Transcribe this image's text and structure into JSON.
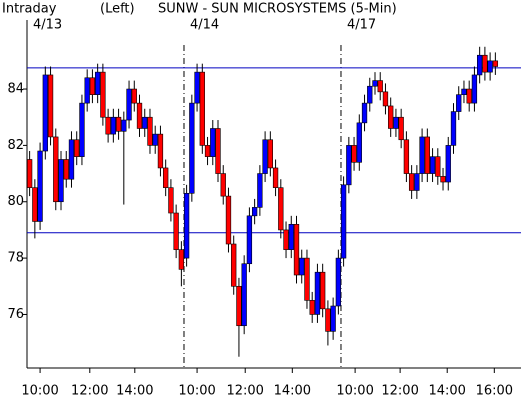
{
  "chart_data": {
    "type": "candlestick",
    "title": "SUNW - SUN MICROSYSTEMS (5-Min)",
    "subtitle": "Intraday",
    "axis_note": "(Left)",
    "up_color": "#0000ff",
    "down_color": "#ff0000",
    "line_color": "#0000c0",
    "open": [
      81.5,
      80.5,
      79.3,
      81.8,
      84.5,
      82.3,
      80.0,
      81.5,
      80.8,
      82.2,
      81.6,
      83.5,
      84.4,
      83.8,
      84.6,
      83.0,
      82.4,
      83.0,
      82.5,
      82.9,
      84.0,
      83.5,
      82.6,
      83.0,
      82.0,
      82.4,
      81.2,
      80.5,
      79.6,
      78.3,
      78.0,
      80.3,
      83.5,
      84.6,
      82.0,
      81.6,
      82.6,
      81.0,
      80.2,
      78.5,
      77.0,
      75.6,
      77.8,
      79.5,
      79.8,
      81.0,
      82.2,
      81.2,
      80.5,
      79.0,
      78.3,
      79.2,
      77.4,
      78.0,
      76.5,
      76.0,
      77.5,
      76.2,
      75.4,
      76.3,
      78.0,
      80.6,
      82.0,
      81.4,
      82.8,
      83.5,
      84.1,
      84.3,
      83.9,
      83.4,
      82.6,
      83.0,
      82.2,
      81.0,
      80.4,
      81.0,
      82.3,
      81.0,
      81.6,
      80.9,
      80.7,
      82.0,
      83.2,
      83.8,
      84.0,
      83.5,
      84.5,
      85.2,
      84.6,
      85.0
    ],
    "high": [
      81.8,
      80.8,
      82.1,
      84.8,
      84.8,
      82.6,
      81.8,
      81.8,
      82.5,
      82.5,
      83.8,
      84.7,
      84.7,
      84.9,
      84.9,
      83.3,
      83.3,
      83.3,
      83.2,
      84.3,
      84.3,
      83.8,
      83.3,
      83.3,
      82.7,
      82.7,
      81.5,
      80.8,
      79.9,
      78.6,
      80.6,
      83.8,
      84.9,
      84.9,
      82.3,
      82.9,
      82.9,
      81.3,
      80.5,
      78.8,
      77.3,
      78.1,
      79.8,
      80.1,
      81.3,
      82.5,
      82.5,
      81.5,
      80.8,
      79.3,
      79.5,
      79.5,
      78.3,
      78.3,
      76.8,
      77.8,
      77.8,
      76.5,
      76.6,
      78.3,
      80.9,
      82.3,
      82.3,
      83.1,
      83.8,
      84.4,
      84.6,
      84.6,
      84.2,
      83.7,
      83.3,
      83.3,
      82.5,
      81.3,
      81.3,
      82.6,
      82.6,
      81.9,
      81.9,
      81.2,
      82.3,
      83.5,
      84.1,
      84.3,
      84.3,
      84.8,
      85.5,
      85.5,
      85.3,
      85.3
    ],
    "low": [
      80.2,
      78.7,
      79.0,
      81.5,
      82.0,
      79.7,
      79.7,
      80.5,
      80.5,
      81.3,
      81.3,
      83.2,
      83.5,
      83.5,
      82.7,
      82.1,
      82.1,
      82.2,
      79.9,
      82.6,
      83.2,
      82.3,
      82.3,
      81.7,
      81.7,
      80.9,
      80.2,
      79.3,
      78.0,
      77.0,
      77.7,
      80.0,
      83.2,
      81.7,
      81.3,
      81.3,
      80.7,
      79.9,
      78.2,
      76.7,
      74.5,
      75.3,
      77.5,
      79.2,
      79.5,
      80.7,
      80.9,
      80.2,
      78.7,
      78.0,
      78.0,
      77.1,
      77.1,
      76.2,
      75.7,
      75.7,
      75.9,
      74.9,
      75.1,
      76.0,
      77.7,
      80.3,
      81.1,
      81.1,
      82.5,
      83.2,
      83.8,
      83.6,
      83.1,
      82.3,
      82.3,
      81.9,
      80.7,
      80.1,
      80.1,
      80.7,
      80.7,
      80.7,
      80.6,
      80.4,
      80.4,
      81.7,
      82.9,
      83.5,
      83.2,
      83.2,
      84.2,
      84.3,
      84.3,
      84.5
    ],
    "close": [
      80.5,
      79.3,
      81.8,
      84.5,
      82.3,
      80.0,
      81.5,
      80.8,
      82.2,
      81.6,
      83.5,
      84.4,
      83.8,
      84.6,
      83.0,
      82.4,
      83.0,
      82.5,
      82.9,
      84.0,
      83.5,
      82.6,
      83.0,
      82.0,
      82.4,
      81.2,
      80.5,
      79.6,
      78.3,
      77.6,
      80.3,
      83.5,
      84.6,
      82.0,
      81.6,
      82.6,
      81.0,
      80.2,
      78.5,
      77.0,
      75.6,
      77.8,
      79.5,
      79.8,
      81.0,
      82.2,
      81.2,
      80.5,
      79.0,
      78.3,
      79.2,
      77.4,
      78.0,
      76.5,
      76.0,
      77.5,
      76.2,
      75.4,
      76.3,
      78.0,
      80.6,
      82.0,
      81.4,
      82.8,
      83.5,
      84.1,
      84.3,
      83.9,
      83.4,
      82.6,
      83.0,
      82.2,
      81.0,
      80.4,
      81.0,
      82.3,
      81.0,
      81.6,
      80.9,
      80.7,
      82.0,
      83.2,
      83.8,
      84.0,
      83.5,
      84.5,
      85.2,
      84.6,
      85.0,
      84.8
    ],
    "hlines": [
      84.75,
      78.9
    ],
    "days": [
      {
        "label": "4/13",
        "x": 0
      },
      {
        "label": "4/14",
        "x": 30
      },
      {
        "label": "4/17",
        "x": 60
      }
    ],
    "xlim": [
      0,
      94.4
    ],
    "ylim": [
      74.1,
      86.45
    ],
    "yticks": [
      76,
      78,
      80,
      82,
      84
    ],
    "xticks": [
      {
        "value": 2.5,
        "label": "10:00"
      },
      {
        "value": 12,
        "label": "12:00"
      },
      {
        "value": 20.6,
        "label": "14:00"
      },
      {
        "value": 32.5,
        "label": "10:00"
      },
      {
        "value": 41.7,
        "label": "12:00"
      },
      {
        "value": 50.7,
        "label": "14:00"
      },
      {
        "value": 62.7,
        "label": "10:00"
      },
      {
        "value": 71.3,
        "label": "12:00"
      },
      {
        "value": 80.3,
        "label": "14:00"
      },
      {
        "value": 89.3,
        "label": "16:00"
      }
    ]
  }
}
